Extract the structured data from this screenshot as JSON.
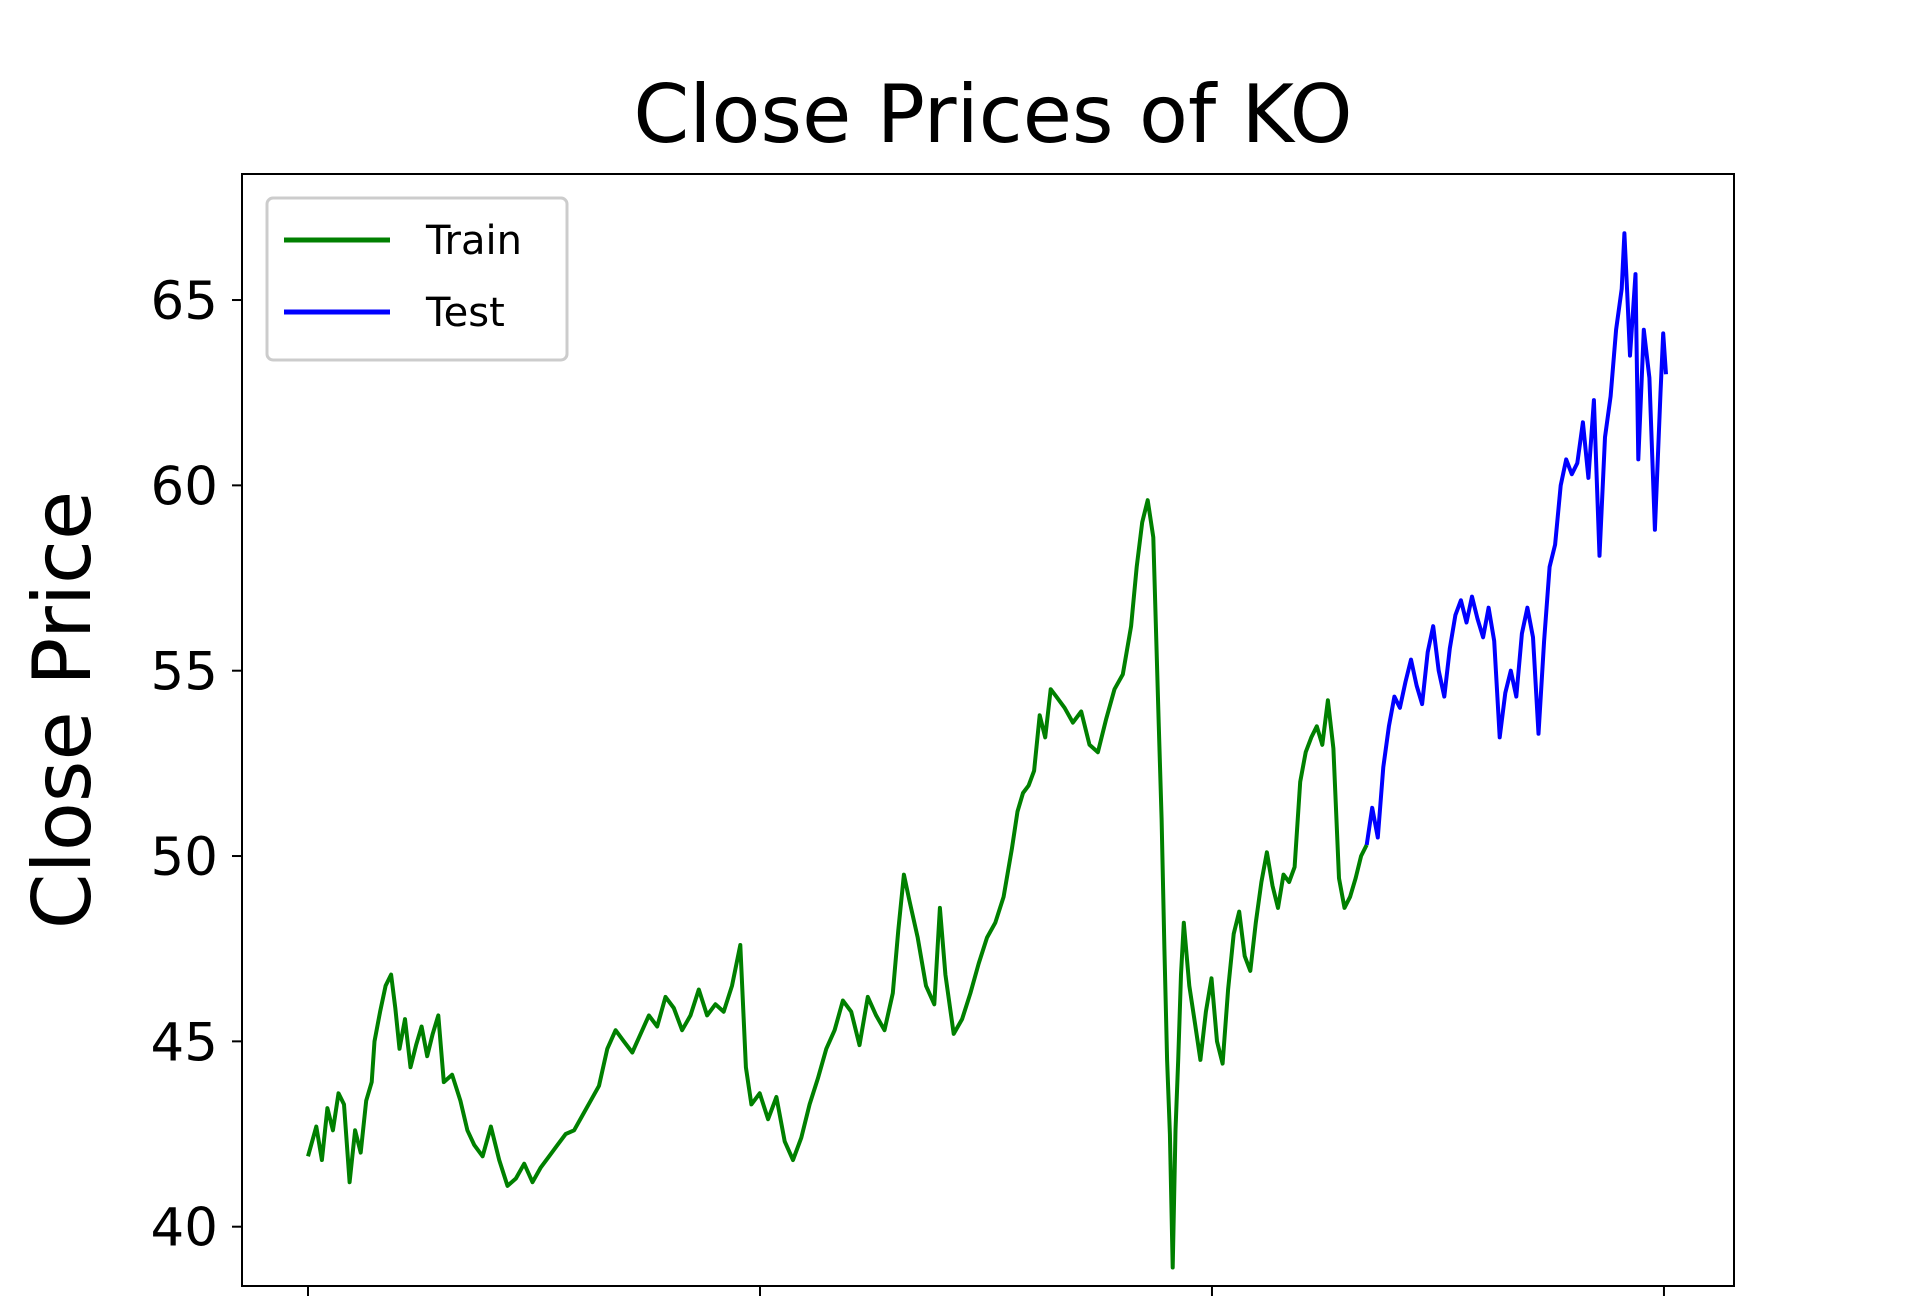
{
  "chart_data": {
    "type": "line",
    "title": "Close Prices of KO",
    "xlabel": "",
    "ylabel": "Close Price",
    "ylim": [
      38.4,
      68.4
    ],
    "yticks": [
      40,
      45,
      50,
      55,
      60,
      65
    ],
    "ytick_labels": [
      "40",
      "45",
      "50",
      "55",
      "60",
      "65"
    ],
    "x_tick_count": 4,
    "grid": false,
    "legend": "upper left",
    "series": [
      {
        "name": "Train",
        "color": "#008000",
        "points": [
          [
            0,
            41.9
          ],
          [
            6,
            42.7
          ],
          [
            10,
            41.8
          ],
          [
            14,
            43.2
          ],
          [
            18,
            42.6
          ],
          [
            22,
            43.6
          ],
          [
            26,
            43.3
          ],
          [
            30,
            41.2
          ],
          [
            34,
            42.6
          ],
          [
            38,
            42.0
          ],
          [
            42,
            43.4
          ],
          [
            46,
            43.9
          ],
          [
            48,
            45.0
          ],
          [
            52,
            45.8
          ],
          [
            56,
            46.5
          ],
          [
            60,
            46.8
          ],
          [
            63,
            45.9
          ],
          [
            66,
            44.8
          ],
          [
            70,
            45.6
          ],
          [
            74,
            44.3
          ],
          [
            78,
            44.9
          ],
          [
            82,
            45.4
          ],
          [
            86,
            44.6
          ],
          [
            90,
            45.2
          ],
          [
            94,
            45.7
          ],
          [
            98,
            43.9
          ],
          [
            104,
            44.1
          ],
          [
            110,
            43.4
          ],
          [
            115,
            42.6
          ],
          [
            120,
            42.2
          ],
          [
            126,
            41.9
          ],
          [
            132,
            42.7
          ],
          [
            138,
            41.8
          ],
          [
            144,
            41.1
          ],
          [
            150,
            41.3
          ],
          [
            156,
            41.7
          ],
          [
            162,
            41.2
          ],
          [
            168,
            41.6
          ],
          [
            174,
            41.9
          ],
          [
            180,
            42.2
          ],
          [
            186,
            42.5
          ],
          [
            192,
            42.6
          ],
          [
            198,
            43.0
          ],
          [
            204,
            43.4
          ],
          [
            210,
            43.8
          ],
          [
            216,
            44.8
          ],
          [
            222,
            45.3
          ],
          [
            228,
            45.0
          ],
          [
            234,
            44.7
          ],
          [
            240,
            45.2
          ],
          [
            246,
            45.7
          ],
          [
            252,
            45.4
          ],
          [
            258,
            46.2
          ],
          [
            264,
            45.9
          ],
          [
            270,
            45.3
          ],
          [
            276,
            45.7
          ],
          [
            282,
            46.4
          ],
          [
            288,
            45.7
          ],
          [
            294,
            46.0
          ],
          [
            300,
            45.8
          ],
          [
            306,
            46.5
          ],
          [
            312,
            47.6
          ],
          [
            316,
            44.3
          ],
          [
            320,
            43.3
          ],
          [
            326,
            43.6
          ],
          [
            332,
            42.9
          ],
          [
            338,
            43.5
          ],
          [
            344,
            42.3
          ],
          [
            350,
            41.8
          ],
          [
            356,
            42.4
          ],
          [
            362,
            43.3
          ],
          [
            368,
            44.0
          ],
          [
            374,
            44.8
          ],
          [
            380,
            45.3
          ],
          [
            386,
            46.1
          ],
          [
            392,
            45.8
          ],
          [
            398,
            44.9
          ],
          [
            404,
            46.2
          ],
          [
            410,
            45.7
          ],
          [
            416,
            45.3
          ],
          [
            422,
            46.3
          ],
          [
            426,
            48.0
          ],
          [
            430,
            49.5
          ],
          [
            434,
            48.8
          ],
          [
            440,
            47.8
          ],
          [
            446,
            46.5
          ],
          [
            452,
            46.0
          ],
          [
            456,
            48.6
          ],
          [
            460,
            46.8
          ],
          [
            466,
            45.2
          ],
          [
            472,
            45.6
          ],
          [
            478,
            46.3
          ],
          [
            484,
            47.1
          ],
          [
            490,
            47.8
          ],
          [
            496,
            48.2
          ],
          [
            502,
            48.9
          ],
          [
            508,
            50.2
          ],
          [
            512,
            51.2
          ],
          [
            516,
            51.7
          ],
          [
            520,
            51.9
          ],
          [
            524,
            52.3
          ],
          [
            528,
            53.8
          ],
          [
            532,
            53.2
          ],
          [
            536,
            54.5
          ],
          [
            540,
            54.3
          ],
          [
            546,
            54.0
          ],
          [
            552,
            53.6
          ],
          [
            558,
            53.9
          ],
          [
            564,
            53.0
          ],
          [
            570,
            52.8
          ],
          [
            576,
            53.7
          ],
          [
            582,
            54.5
          ],
          [
            588,
            54.9
          ],
          [
            594,
            56.2
          ],
          [
            598,
            57.8
          ],
          [
            602,
            59.0
          ],
          [
            606,
            59.6
          ],
          [
            610,
            58.6
          ],
          [
            612,
            56.0
          ],
          [
            614,
            53.5
          ],
          [
            616,
            51.0
          ],
          [
            618,
            47.5
          ],
          [
            620,
            44.5
          ],
          [
            622,
            42.5
          ],
          [
            624,
            38.9
          ],
          [
            626,
            42.6
          ],
          [
            628,
            44.5
          ],
          [
            630,
            46.8
          ],
          [
            632,
            48.2
          ],
          [
            636,
            46.5
          ],
          [
            640,
            45.5
          ],
          [
            644,
            44.5
          ],
          [
            648,
            45.8
          ],
          [
            652,
            46.7
          ],
          [
            656,
            45.0
          ],
          [
            660,
            44.4
          ],
          [
            664,
            46.4
          ],
          [
            668,
            47.9
          ],
          [
            672,
            48.5
          ],
          [
            676,
            47.3
          ],
          [
            680,
            46.9
          ],
          [
            684,
            48.2
          ],
          [
            688,
            49.3
          ],
          [
            692,
            50.1
          ],
          [
            696,
            49.2
          ],
          [
            700,
            48.6
          ],
          [
            704,
            49.5
          ],
          [
            708,
            49.3
          ],
          [
            712,
            49.7
          ],
          [
            716,
            52.0
          ],
          [
            720,
            52.8
          ],
          [
            724,
            53.2
          ],
          [
            728,
            53.5
          ],
          [
            732,
            53.0
          ],
          [
            736,
            54.2
          ],
          [
            740,
            52.9
          ],
          [
            744,
            49.4
          ],
          [
            748,
            48.6
          ],
          [
            752,
            48.9
          ],
          [
            756,
            49.4
          ],
          [
            760,
            50.0
          ],
          [
            764,
            50.3
          ]
        ]
      },
      {
        "name": "Test",
        "color": "#0000ff",
        "points": [
          [
            764,
            50.3
          ],
          [
            768,
            51.3
          ],
          [
            772,
            50.5
          ],
          [
            776,
            52.4
          ],
          [
            780,
            53.5
          ],
          [
            784,
            54.3
          ],
          [
            788,
            54.0
          ],
          [
            792,
            54.7
          ],
          [
            796,
            55.3
          ],
          [
            800,
            54.6
          ],
          [
            804,
            54.1
          ],
          [
            808,
            55.5
          ],
          [
            812,
            56.2
          ],
          [
            816,
            55.0
          ],
          [
            820,
            54.3
          ],
          [
            824,
            55.6
          ],
          [
            828,
            56.5
          ],
          [
            832,
            56.9
          ],
          [
            836,
            56.3
          ],
          [
            840,
            57.0
          ],
          [
            844,
            56.4
          ],
          [
            848,
            55.9
          ],
          [
            852,
            56.7
          ],
          [
            856,
            55.8
          ],
          [
            860,
            53.2
          ],
          [
            864,
            54.4
          ],
          [
            868,
            55.0
          ],
          [
            872,
            54.3
          ],
          [
            876,
            56.0
          ],
          [
            880,
            56.7
          ],
          [
            884,
            55.9
          ],
          [
            888,
            53.3
          ],
          [
            892,
            55.8
          ],
          [
            896,
            57.8
          ],
          [
            900,
            58.4
          ],
          [
            904,
            60.0
          ],
          [
            908,
            60.7
          ],
          [
            912,
            60.3
          ],
          [
            916,
            60.6
          ],
          [
            920,
            61.7
          ],
          [
            924,
            60.2
          ],
          [
            928,
            62.3
          ],
          [
            932,
            58.1
          ],
          [
            936,
            61.3
          ],
          [
            940,
            62.4
          ],
          [
            944,
            64.2
          ],
          [
            948,
            65.3
          ],
          [
            950,
            66.8
          ],
          [
            952,
            65.2
          ],
          [
            954,
            63.5
          ],
          [
            958,
            65.7
          ],
          [
            960,
            60.7
          ],
          [
            964,
            64.2
          ],
          [
            968,
            62.9
          ],
          [
            972,
            58.8
          ],
          [
            976,
            62.5
          ],
          [
            978,
            64.1
          ],
          [
            980,
            63.0
          ]
        ]
      }
    ]
  }
}
